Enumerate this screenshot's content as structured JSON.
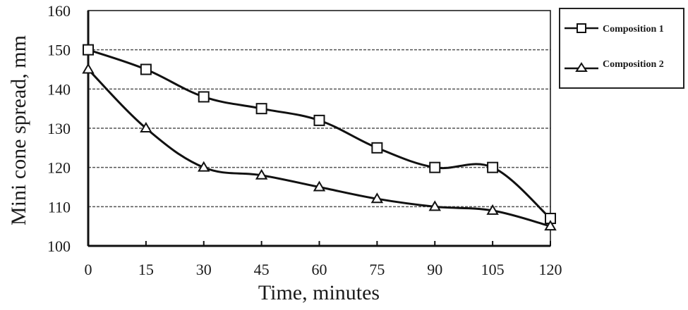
{
  "chart_data": {
    "type": "line",
    "title": "",
    "xlabel": "Time, minutes",
    "ylabel": "Mini cone spread, mm",
    "x": [
      0,
      15,
      30,
      45,
      60,
      75,
      90,
      105,
      120
    ],
    "xlim": [
      0,
      120
    ],
    "ylim": [
      100,
      160
    ],
    "xticks": [
      "0",
      "15",
      "30",
      "45",
      "60",
      "75",
      "90",
      "105",
      "120"
    ],
    "yticks": [
      "100",
      "110",
      "120",
      "130",
      "140",
      "150",
      "160"
    ],
    "grid": "horizontal dashed",
    "legend_position": "right, outside",
    "series": [
      {
        "name": "Composition 1",
        "marker": "square",
        "values": [
          150,
          145,
          138,
          135,
          132,
          125,
          120,
          120,
          107
        ]
      },
      {
        "name": "Composition 2",
        "marker": "triangle",
        "values": [
          145,
          130,
          120,
          118,
          115,
          112,
          110,
          109,
          105
        ]
      }
    ]
  },
  "colors": {
    "line": "#111111",
    "marker_fill": "#ffffff",
    "grid": "#555555"
  }
}
